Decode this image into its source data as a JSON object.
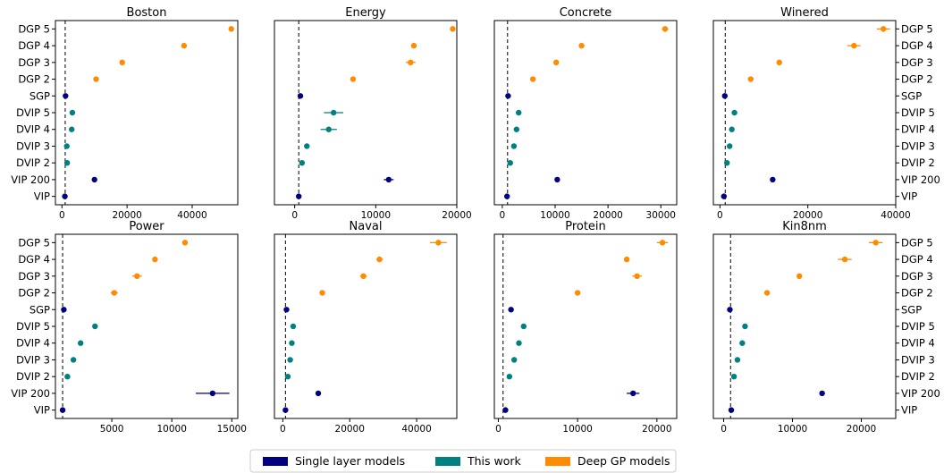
{
  "chart_data": {
    "type": "scatter",
    "y_categories": [
      "DGP 5",
      "DGP 4",
      "DGP 3",
      "DGP 2",
      "SGP",
      "DVIP 5",
      "DVIP 4",
      "DVIP 3",
      "DVIP 2",
      "VIP 200",
      "VIP"
    ],
    "groups": {
      "DGP 5": "deep",
      "DGP 4": "deep",
      "DGP 3": "deep",
      "DGP 2": "deep",
      "SGP": "single",
      "DVIP 5": "this",
      "DVIP 4": "this",
      "DVIP 3": "this",
      "DVIP 2": "this",
      "VIP 200": "single",
      "VIP": "single"
    },
    "colors": {
      "single": "#000080",
      "this": "#008080",
      "deep": "#ff8c00"
    },
    "legend": [
      {
        "group": "single",
        "label": "Single layer models"
      },
      {
        "group": "this",
        "label": "This work"
      },
      {
        "group": "deep",
        "label": "Deep GP models"
      }
    ],
    "legend_position": "bottom-center",
    "panels": [
      {
        "title": "Boston",
        "xlim": [
          -2000,
          54000
        ],
        "xticks": [
          0,
          20000,
          40000
        ],
        "vline": 1000,
        "ylabels": "left",
        "values": [
          52000,
          37500,
          18500,
          10500,
          1100,
          3200,
          3000,
          1500,
          1600,
          10000,
          900
        ],
        "errors": [
          0,
          0,
          0,
          0,
          0,
          0,
          0,
          0,
          0,
          0,
          0
        ]
      },
      {
        "title": "Energy",
        "xlim": [
          -2500,
          20000
        ],
        "xticks": [
          0,
          10000,
          20000
        ],
        "vline": 500,
        "ylabels": "none",
        "values": [
          19500,
          14700,
          14300,
          7200,
          700,
          4800,
          4200,
          1500,
          900,
          11600,
          500
        ],
        "errors": [
          0,
          0,
          600,
          0,
          0,
          1200,
          1000,
          0,
          0,
          600,
          0
        ]
      },
      {
        "title": "Concrete",
        "xlim": [
          -1500,
          33000
        ],
        "xticks": [
          0,
          10000,
          20000,
          30000
        ],
        "vline": 1000,
        "ylabels": "none",
        "values": [
          30800,
          15000,
          10200,
          5800,
          1100,
          3100,
          2700,
          2200,
          1500,
          10400,
          900
        ],
        "errors": [
          600,
          0,
          0,
          0,
          0,
          0,
          0,
          0,
          0,
          0,
          0
        ]
      },
      {
        "title": "Winered",
        "xlim": [
          -1500,
          40000
        ],
        "xticks": [
          0,
          20000,
          40000
        ],
        "vline": 1200,
        "ylabels": "right",
        "values": [
          37200,
          30500,
          13500,
          7000,
          1100,
          3300,
          2700,
          2200,
          1600,
          12000,
          900
        ],
        "errors": [
          1500,
          1500,
          0,
          0,
          0,
          0,
          0,
          0,
          0,
          0,
          0
        ]
      },
      {
        "title": "Power",
        "xlim": [
          300,
          15500
        ],
        "xticks": [
          5000,
          10000,
          15000
        ],
        "vline": 900,
        "ylabels": "left",
        "values": [
          11100,
          8600,
          7100,
          5200,
          1000,
          3600,
          2400,
          1800,
          1300,
          13400,
          900
        ],
        "errors": [
          0,
          0,
          400,
          300,
          0,
          0,
          0,
          0,
          0,
          1400,
          0
        ]
      },
      {
        "title": "Naval",
        "xlim": [
          -2500,
          52000
        ],
        "xticks": [
          0,
          20000,
          40000
        ],
        "vline": 800,
        "ylabels": "none",
        "values": [
          46500,
          28900,
          24100,
          11800,
          1100,
          3100,
          2700,
          2200,
          1500,
          10600,
          800
        ],
        "errors": [
          2500,
          1000,
          1000,
          0,
          0,
          0,
          0,
          0,
          0,
          0,
          0
        ]
      },
      {
        "title": "Protein",
        "xlim": [
          -500,
          22500
        ],
        "xticks": [
          0,
          10000,
          20000
        ],
        "vline": 600,
        "ylabels": "none",
        "values": [
          20700,
          16200,
          17500,
          10000,
          1600,
          3200,
          2600,
          2000,
          1400,
          17000,
          900
        ],
        "errors": [
          700,
          0,
          600,
          0,
          0,
          0,
          0,
          0,
          0,
          800,
          0
        ]
      },
      {
        "title": "Kin8nm",
        "xlim": [
          -1500,
          25000
        ],
        "xticks": [
          0,
          10000,
          20000
        ],
        "vline": 1000,
        "ylabels": "right",
        "values": [
          22100,
          17600,
          11000,
          6300,
          900,
          3100,
          2700,
          2000,
          1500,
          14300,
          1100
        ],
        "errors": [
          1000,
          1000,
          0,
          0,
          0,
          0,
          0,
          0,
          0,
          400,
          0
        ]
      }
    ]
  }
}
